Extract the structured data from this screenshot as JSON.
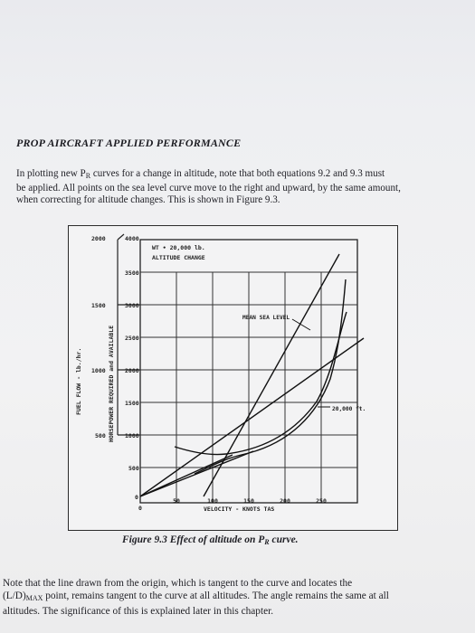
{
  "header": {
    "title": "PROP AIRCRAFT APPLIED PERFORMANCE"
  },
  "intro": {
    "lines": [
      "In plotting new P",
      "be applied. All points on the sea level curve move to the right and upward, by the same amount,",
      "when correcting for altitude changes. This is shown in Figure 9.3."
    ],
    "line1_sub": "R",
    "line1_rest": " curves for a change in altitude, note that both equations 9.2 and 9.3 must"
  },
  "figure": {
    "legend_line1": "WT • 20,000 lb.",
    "legend_line2": "ALTITUDE CHANGE",
    "y_axis_outer_label": "FUEL FLOW - lb./hr.",
    "y_axis_inner_label": "HORSEPOWER REQUIRED and AVAILABLE",
    "x_axis_label": "VELOCITY - KNOTS TAS",
    "annotation_msl": "MEAN SEA LEVEL",
    "annotation_alt": "20,000 ft.",
    "fuel_ticks": [
      "2000",
      "1500",
      "1000",
      "500"
    ],
    "hp_ticks": [
      "4000",
      "3500",
      "3000",
      "2500",
      "2000",
      "1500",
      "1000",
      "500",
      "0"
    ],
    "x_ticks": [
      "0",
      "50",
      "100",
      "150",
      "200",
      "250"
    ]
  },
  "caption": {
    "prefix": "Figure 9.3 Effect of altitude on P",
    "sub": "R",
    "suffix": " curve."
  },
  "closing": {
    "line1": "Note that the line drawn from the origin, which is tangent to the curve and locates the",
    "line2_a": "(L/D)",
    "line2_sub": "MAX",
    "line2_b": " point, remains tangent to the curve at all altitudes. The angle remains the same at all",
    "line3": "altitudes. The significance of this is explained later in this chapter."
  }
}
